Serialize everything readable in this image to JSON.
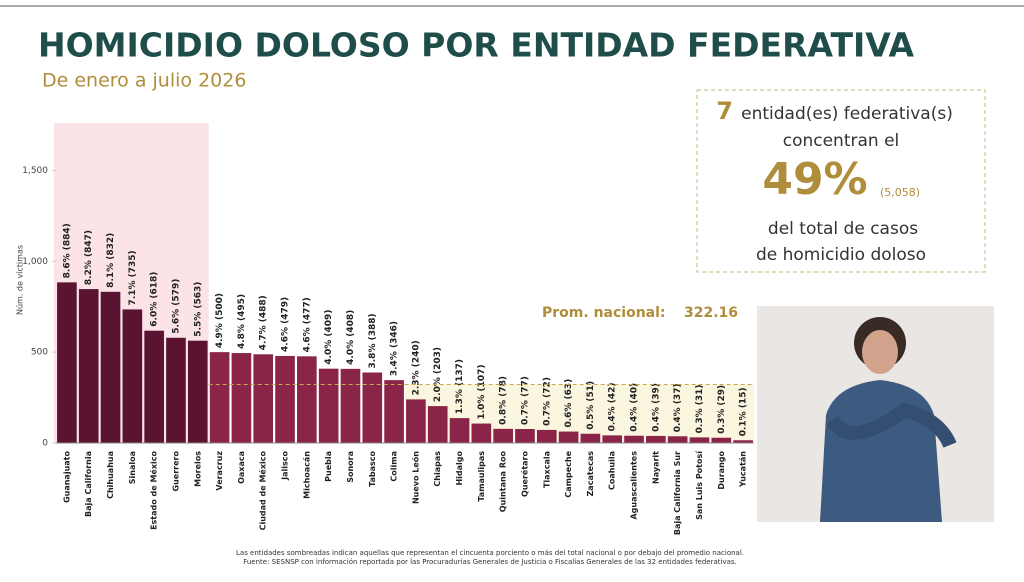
{
  "header": {
    "title": "HOMICIDIO DOLOSO POR ENTIDAD FEDERATIVA",
    "subtitle": "De enero a julio 2026"
  },
  "callout": {
    "count": 7,
    "line1": "entidad(es) federativa(s)",
    "line2": "concentran el",
    "percent": "49%",
    "total": "(5,058)",
    "line3": "del total de casos",
    "line4": "de homicidio doloso"
  },
  "chart_data": {
    "type": "bar",
    "y_label": "Núm. de víctimas",
    "categories": [
      "Guanajuato",
      "Baja California",
      "Chihuahua",
      "Sinaloa",
      "Estado de México",
      "Guerrero",
      "Morelos",
      "Veracruz",
      "Oaxaca",
      "Ciudad de México",
      "Jalisco",
      "Michoacán",
      "Puebla",
      "Sonora",
      "Tabasco",
      "Colima",
      "Nuevo León",
      "Chiapas",
      "Hidalgo",
      "Tamaulipas",
      "Quintana Roo",
      "Querétaro",
      "Tlaxcala",
      "Campeche",
      "Zacatecas",
      "Coahuila",
      "Aguascalientes",
      "Nayarit",
      "Baja California Sur",
      "San Luis Potosí",
      "Durango",
      "Yucatán"
    ],
    "values": [
      884,
      847,
      832,
      735,
      618,
      579,
      563,
      500,
      495,
      488,
      479,
      477,
      409,
      408,
      388,
      346,
      240,
      203,
      137,
      107,
      78,
      77,
      72,
      63,
      51,
      42,
      40,
      39,
      37,
      31,
      29,
      15
    ],
    "value_labels": [
      "8.6% (884)",
      "8.2% (847)",
      "8.1% (832)",
      "7.1% (735)",
      "6.0% (618)",
      "5.6% (579)",
      "5.5% (563)",
      "4.9% (500)",
      "4.8% (495)",
      "4.7% (488)",
      "4.6% (479)",
      "4.6% (477)",
      "4.0% (409)",
      "4.0% (408)",
      "3.8% (388)",
      "3.4% (346)",
      "2.3% (240)",
      "2.0% (203)",
      "1.3% (137)",
      "1.0% (107)",
      "0.8% (78)",
      "0.7% (77)",
      "0.7% (72)",
      "0.6% (63)",
      "0.5% (51)",
      "0.4% (42)",
      "0.4% (40)",
      "0.4% (39)",
      "0.4% (37)",
      "0.3% (31)",
      "0.3% (29)",
      "0.1% (15)"
    ],
    "color": "#8a2448",
    "highlight_color": "#5a1432",
    "ylim": [
      0,
      1750
    ],
    "yticks": [
      0,
      500,
      {
        "value": 1000,
        "label": "1,000"
      },
      {
        "value": 1500,
        "label": "1,500"
      }
    ],
    "average": {
      "label": "Prom. nacional:",
      "value": 322.16
    }
  },
  "footer": {
    "note": "Las entidades sombreadas indican aquellas que representan el cincuenta porciento o más del total nacional o por debajo del promedio nacional.",
    "source": "Fuente: SESNSP con información reportada por las Procuradurías Generales de Justicia o Fiscalías Generales de las 32 entidades federativas."
  }
}
